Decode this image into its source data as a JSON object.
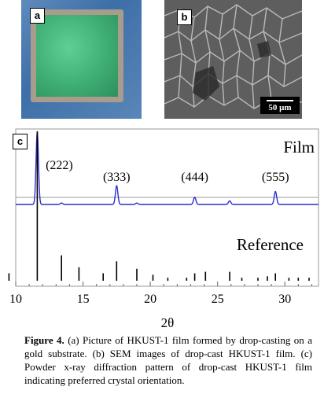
{
  "panel_labels": {
    "a": "a",
    "b": "b",
    "c": "c"
  },
  "sem": {
    "scale_bar": "50 μm"
  },
  "chart_data": {
    "type": "line",
    "xlabel": "2θ",
    "ylabel": "",
    "xlim": [
      10,
      32.5
    ],
    "x_ticks": [
      "10",
      "15",
      "20",
      "25",
      "30"
    ],
    "series": [
      {
        "name": "Film",
        "color": "#2f2fc8",
        "baseline": 0.0,
        "peaks": [
          {
            "x": 11.6,
            "y": 1.0
          },
          {
            "x": 13.4,
            "y": 0.02
          },
          {
            "x": 17.5,
            "y": 0.26
          },
          {
            "x": 19.0,
            "y": 0.02
          },
          {
            "x": 23.3,
            "y": 0.1
          },
          {
            "x": 25.9,
            "y": 0.05
          },
          {
            "x": 29.3,
            "y": 0.18
          }
        ],
        "annotations": [
          {
            "x": 11.6,
            "text": "(222)"
          },
          {
            "x": 17.5,
            "text": "(333)"
          },
          {
            "x": 23.3,
            "text": "(444)"
          },
          {
            "x": 29.3,
            "text": "(555)"
          }
        ]
      },
      {
        "name": "Reference",
        "color": "#000000",
        "peaks": [
          {
            "x": 9.5,
            "y": 0.05
          },
          {
            "x": 11.6,
            "y": 1.0
          },
          {
            "x": 13.4,
            "y": 0.17
          },
          {
            "x": 14.7,
            "y": 0.09
          },
          {
            "x": 16.5,
            "y": 0.05
          },
          {
            "x": 17.5,
            "y": 0.13
          },
          {
            "x": 19.0,
            "y": 0.08
          },
          {
            "x": 20.2,
            "y": 0.04
          },
          {
            "x": 21.3,
            "y": 0.02
          },
          {
            "x": 22.7,
            "y": 0.02
          },
          {
            "x": 23.3,
            "y": 0.05
          },
          {
            "x": 24.1,
            "y": 0.06
          },
          {
            "x": 25.9,
            "y": 0.06
          },
          {
            "x": 26.8,
            "y": 0.02
          },
          {
            "x": 28.0,
            "y": 0.02
          },
          {
            "x": 28.7,
            "y": 0.03
          },
          {
            "x": 29.3,
            "y": 0.05
          },
          {
            "x": 30.3,
            "y": 0.02
          },
          {
            "x": 31.0,
            "y": 0.02
          },
          {
            "x": 31.8,
            "y": 0.02
          }
        ]
      }
    ]
  },
  "caption": {
    "label": "Figure 4.",
    "text": " (a) Picture of HKUST-1 film formed by drop-casting on a gold substrate.  (b) SEM images of drop-cast HKUST-1 film. (c) Powder x-ray diffraction pattern of drop-cast HKUST-1 film indicating preferred crystal orientation."
  }
}
